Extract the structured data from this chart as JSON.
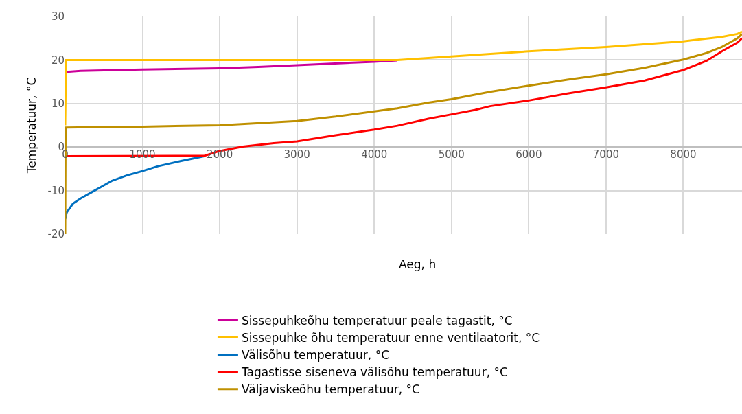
{
  "chart_data": {
    "type": "line",
    "xlabel": "Aeg, h",
    "ylabel": "Temperatuur, °C",
    "xlim": [
      0,
      8760
    ],
    "ylim": [
      -20,
      30
    ],
    "xticks": [
      0,
      1000,
      2000,
      3000,
      4000,
      5000,
      6000,
      7000,
      8000
    ],
    "yticks": [
      -20,
      -10,
      0,
      10,
      20,
      30
    ],
    "grid": true,
    "legend": "bottom",
    "marker": "none",
    "line_style": "solid",
    "series": [
      {
        "name": "Sissepuhkeõhu temperatuur peale tagastit, °C",
        "color": "#cc0099",
        "x": [
          0,
          50,
          200,
          1000,
          2000,
          2500,
          3000,
          4000,
          4300
        ],
        "values": [
          17.0,
          17.3,
          17.5,
          17.8,
          18.1,
          18.4,
          18.8,
          19.6,
          19.9
        ]
      },
      {
        "name": "Sissepuhke õhu temperatuur enne ventilaatorit, °C",
        "color": "#ffc000",
        "x": [
          0,
          10,
          4300,
          5000,
          6000,
          7000,
          8000,
          8500,
          8700,
          8760
        ],
        "values": [
          5,
          20,
          20,
          20.8,
          22.0,
          23.0,
          24.3,
          25.3,
          26.0,
          26.5
        ]
      },
      {
        "name": "Välisõhu temperatuur, °C",
        "color": "#0070c0",
        "x": [
          0,
          20,
          100,
          200,
          300,
          400,
          500,
          600,
          800,
          1000,
          1200,
          1500,
          1800
        ],
        "values": [
          -16.5,
          -15,
          -13,
          -11.8,
          -10.8,
          -9.8,
          -8.8,
          -7.8,
          -6.5,
          -5.5,
          -4.4,
          -3.2,
          -2.1
        ]
      },
      {
        "name": "Tagastisse siseneva välisõhu temperatuur, °C",
        "color": "#ff0000",
        "x": [
          0,
          1800,
          2000,
          2300,
          2700,
          3000,
          3500,
          4000,
          4300,
          4700,
          5000,
          5300,
          5500,
          6000,
          6500,
          7000,
          7500,
          8000,
          8300,
          8500,
          8700,
          8760
        ],
        "values": [
          -2.1,
          -2.0,
          -0.9,
          0.1,
          0.9,
          1.3,
          2.7,
          4.0,
          4.9,
          6.5,
          7.5,
          8.5,
          9.4,
          10.7,
          12.3,
          13.7,
          15.3,
          17.7,
          19.8,
          22.0,
          24.0,
          25.0
        ]
      },
      {
        "name": "Väljaviskeõhu temperatuur, °C",
        "color": "#bf9000",
        "x": [
          0,
          5,
          500,
          1000,
          2000,
          3000,
          3500,
          4000,
          4300,
          4700,
          5000,
          5500,
          6000,
          6500,
          7000,
          7500,
          8000,
          8300,
          8500,
          8700,
          8760
        ],
        "values": [
          -20,
          4.5,
          4.6,
          4.7,
          5.0,
          6.0,
          7.0,
          8.2,
          8.9,
          10.2,
          11.0,
          12.7,
          14.1,
          15.5,
          16.7,
          18.2,
          20.1,
          21.6,
          23.0,
          25.0,
          26.0
        ]
      }
    ]
  }
}
